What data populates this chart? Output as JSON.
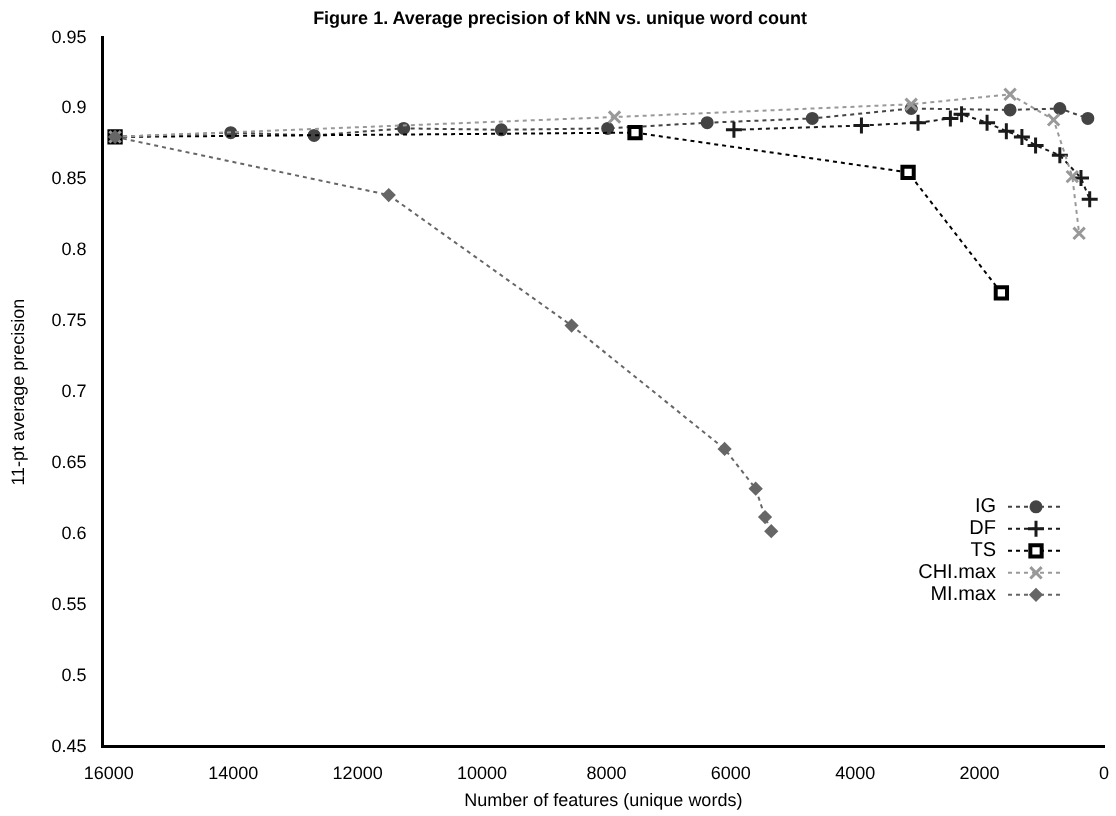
{
  "chart_data": {
    "type": "line",
    "title": "Figure 1. Average precision of kNN vs. unique word count",
    "xlabel": "Number of features (unique words)",
    "ylabel": "11-pt average precision",
    "xlim": [
      16100,
      0
    ],
    "xticks": [
      16000,
      14000,
      12000,
      10000,
      8000,
      6000,
      4000,
      2000,
      0
    ],
    "ylim": [
      0.45,
      0.95
    ],
    "yticks": [
      0.45,
      0.5,
      0.55,
      0.6,
      0.65,
      0.7,
      0.75,
      0.8,
      0.85,
      0.9,
      0.95
    ],
    "grid": false,
    "legend": "bottom right",
    "line_style": "dotted",
    "series": [
      {
        "name": "IG",
        "color": "#444444",
        "marker": "circle",
        "x": [
          15900,
          14040,
          12700,
          11260,
          9690,
          7980,
          6380,
          4690,
          3100,
          1510,
          710,
          260
        ],
        "values": [
          0.88,
          0.883,
          0.881,
          0.886,
          0.885,
          0.886,
          0.89,
          0.893,
          0.9,
          0.899,
          0.9,
          0.893
        ]
      },
      {
        "name": "DF",
        "color": "#1a1a1a",
        "marker": "cross",
        "x": [
          5950,
          3900,
          2990,
          2470,
          2290,
          1880,
          1570,
          1320,
          1100,
          710,
          370,
          230
        ],
        "values": [
          0.885,
          0.888,
          0.89,
          0.893,
          0.896,
          0.89,
          0.884,
          0.88,
          0.874,
          0.867,
          0.851,
          0.836
        ]
      },
      {
        "name": "TS",
        "color": "#000000",
        "marker": "square",
        "x": [
          15900,
          7540,
          3150,
          1650
        ],
        "values": [
          0.88,
          0.883,
          0.855,
          0.77
        ]
      },
      {
        "name": "CHI.max",
        "color": "#999999",
        "marker": "crossRot",
        "x": [
          15900,
          7870,
          3100,
          1510,
          810,
          510,
          400
        ],
        "values": [
          0.88,
          0.894,
          0.903,
          0.91,
          0.892,
          0.852,
          0.812
        ]
      },
      {
        "name": "MI.max",
        "color": "#666666",
        "marker": "diamond",
        "x": [
          15900,
          11500,
          8560,
          6100,
          5600,
          5450,
          5350
        ],
        "values": [
          0.88,
          0.839,
          0.747,
          0.66,
          0.632,
          0.612,
          0.602
        ]
      }
    ]
  }
}
